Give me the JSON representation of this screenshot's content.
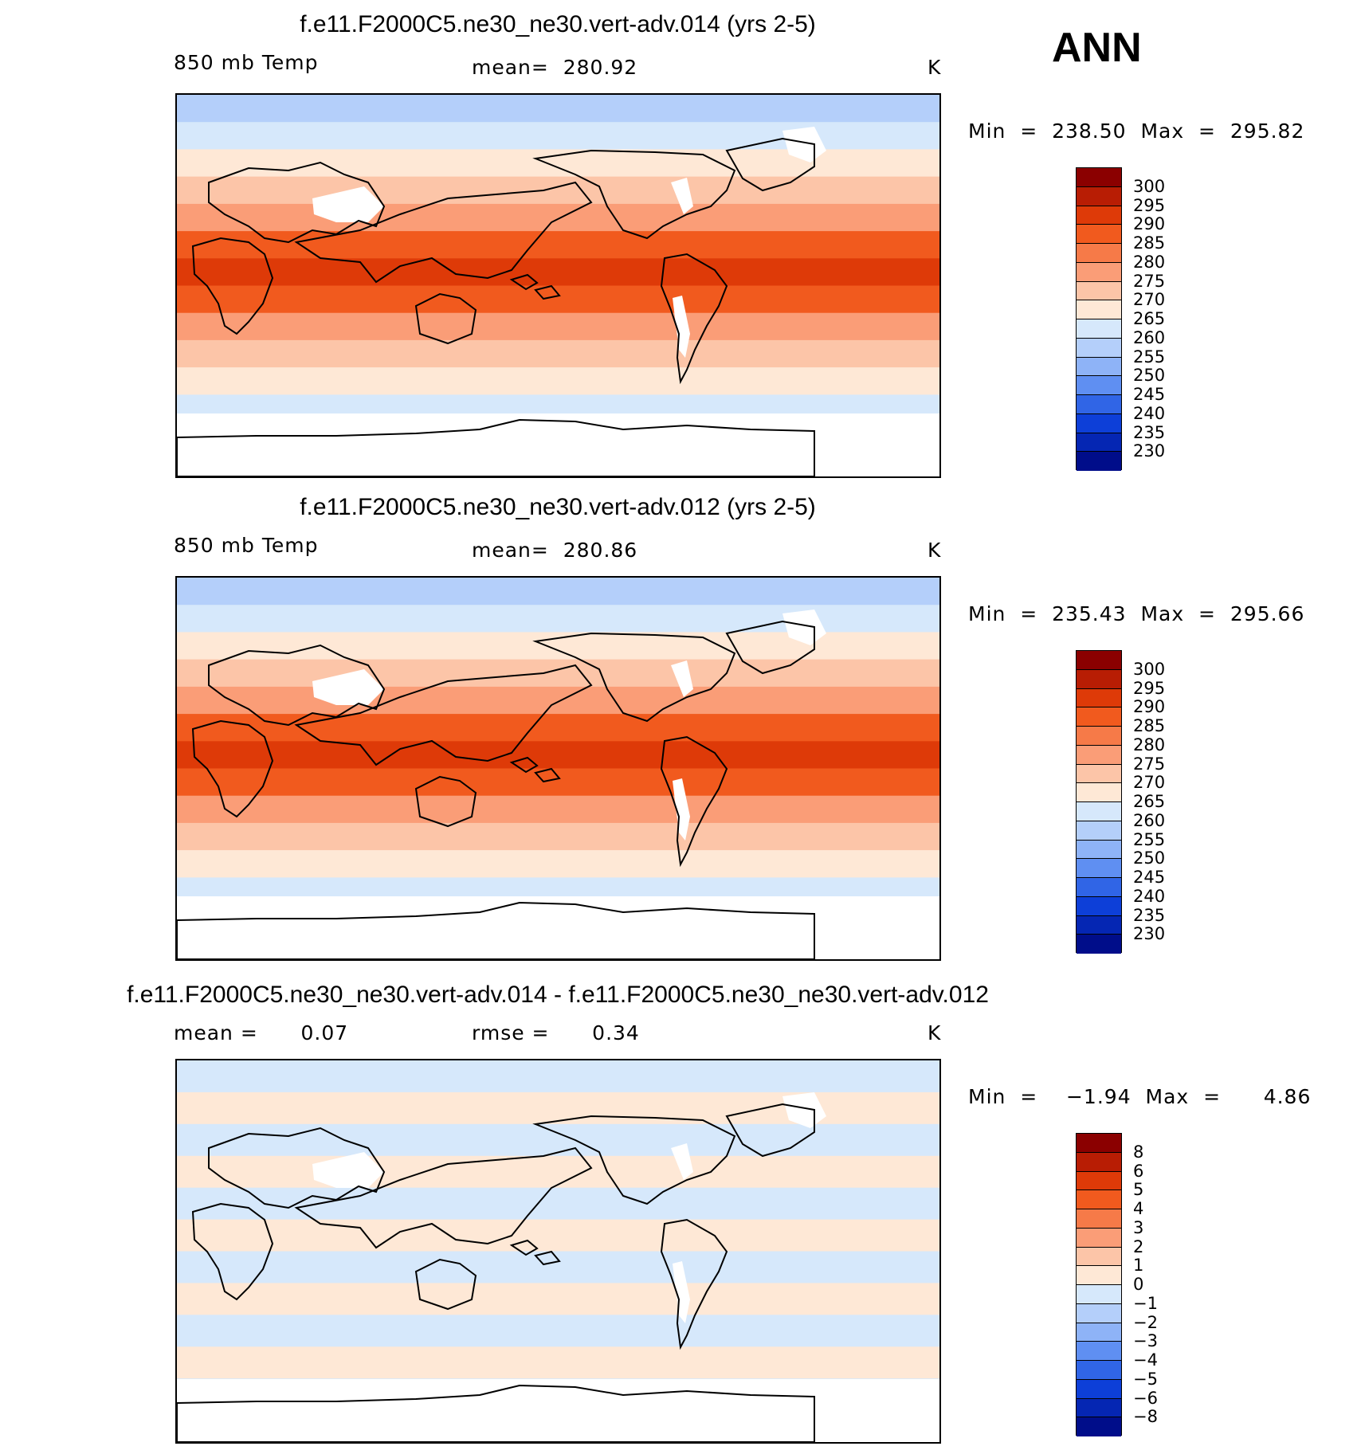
{
  "season": "ANN",
  "panels": [
    {
      "title": "f.e11.F2000C5.ne30_ne30.vert-adv.014 (yrs 2-5)",
      "variable": "850 mb Temp",
      "stat": "mean=  280.92",
      "units": "K",
      "minmax": "Min  =  238.50  Max  =  295.82",
      "colorbar": {
        "labels": [
          "300",
          "295",
          "290",
          "285",
          "280",
          "275",
          "270",
          "265",
          "260",
          "255",
          "250",
          "245",
          "240",
          "235",
          "230"
        ],
        "colors": [
          "#8b0000",
          "#b81d04",
          "#de3a08",
          "#f15a1e",
          "#f67a48",
          "#fa9d77",
          "#fcc5a8",
          "#fee8d6",
          "#d6e8fb",
          "#b4cffa",
          "#8eb3f7",
          "#5f8ff2",
          "#3065e6",
          "#0d3fd8",
          "#0526b3",
          "#000d8a"
        ]
      },
      "band_colors": [
        "#b4cffa",
        "#d6e8fb",
        "#fee8d6",
        "#fcc5a8",
        "#fa9d77",
        "#f15a1e",
        "#de3a08",
        "#f15a1e",
        "#fa9d77",
        "#fcc5a8",
        "#fee8d6",
        "#d6e8fb",
        "#b4cffa",
        "#8eb3f7"
      ]
    },
    {
      "title": "f.e11.F2000C5.ne30_ne30.vert-adv.012 (yrs 2-5)",
      "variable": "850 mb Temp",
      "stat": "mean=  280.86",
      "units": "K",
      "minmax": "Min  =  235.43  Max  =  295.66",
      "colorbar": {
        "labels": [
          "300",
          "295",
          "290",
          "285",
          "280",
          "275",
          "270",
          "265",
          "260",
          "255",
          "250",
          "245",
          "240",
          "235",
          "230"
        ],
        "colors": [
          "#8b0000",
          "#b81d04",
          "#de3a08",
          "#f15a1e",
          "#f67a48",
          "#fa9d77",
          "#fcc5a8",
          "#fee8d6",
          "#d6e8fb",
          "#b4cffa",
          "#8eb3f7",
          "#5f8ff2",
          "#3065e6",
          "#0d3fd8",
          "#0526b3",
          "#000d8a"
        ]
      },
      "band_colors": [
        "#b4cffa",
        "#d6e8fb",
        "#fee8d6",
        "#fcc5a8",
        "#fa9d77",
        "#f15a1e",
        "#de3a08",
        "#f15a1e",
        "#fa9d77",
        "#fcc5a8",
        "#fee8d6",
        "#d6e8fb",
        "#b4cffa",
        "#8eb3f7"
      ]
    },
    {
      "title": "f.e11.F2000C5.ne30_ne30.vert-adv.014 - f.e11.F2000C5.ne30_ne30.vert-adv.012",
      "variable": "mean =      0.07",
      "stat": "rmse =      0.34",
      "units": "K",
      "minmax": "Min  =    −1.94  Max  =      4.86",
      "colorbar": {
        "labels": [
          "8",
          "6",
          "5",
          "4",
          "3",
          "2",
          "1",
          "0",
          "−1",
          "−2",
          "−3",
          "−4",
          "−5",
          "−6",
          "−8"
        ],
        "colors": [
          "#8b0000",
          "#b81d04",
          "#de3a08",
          "#f15a1e",
          "#f67a48",
          "#fa9d77",
          "#fcc5a8",
          "#fee8d6",
          "#d6e8fb",
          "#b4cffa",
          "#8eb3f7",
          "#5f8ff2",
          "#3065e6",
          "#0d3fd8",
          "#0526b3",
          "#000d8a"
        ]
      },
      "band_colors": [
        "#d6e8fb",
        "#fee8d6",
        "#d6e8fb",
        "#fee8d6",
        "#d6e8fb",
        "#fee8d6",
        "#d6e8fb",
        "#fee8d6",
        "#d6e8fb",
        "#fee8d6",
        "#d6e8fb",
        "#fee8d6"
      ]
    }
  ]
}
